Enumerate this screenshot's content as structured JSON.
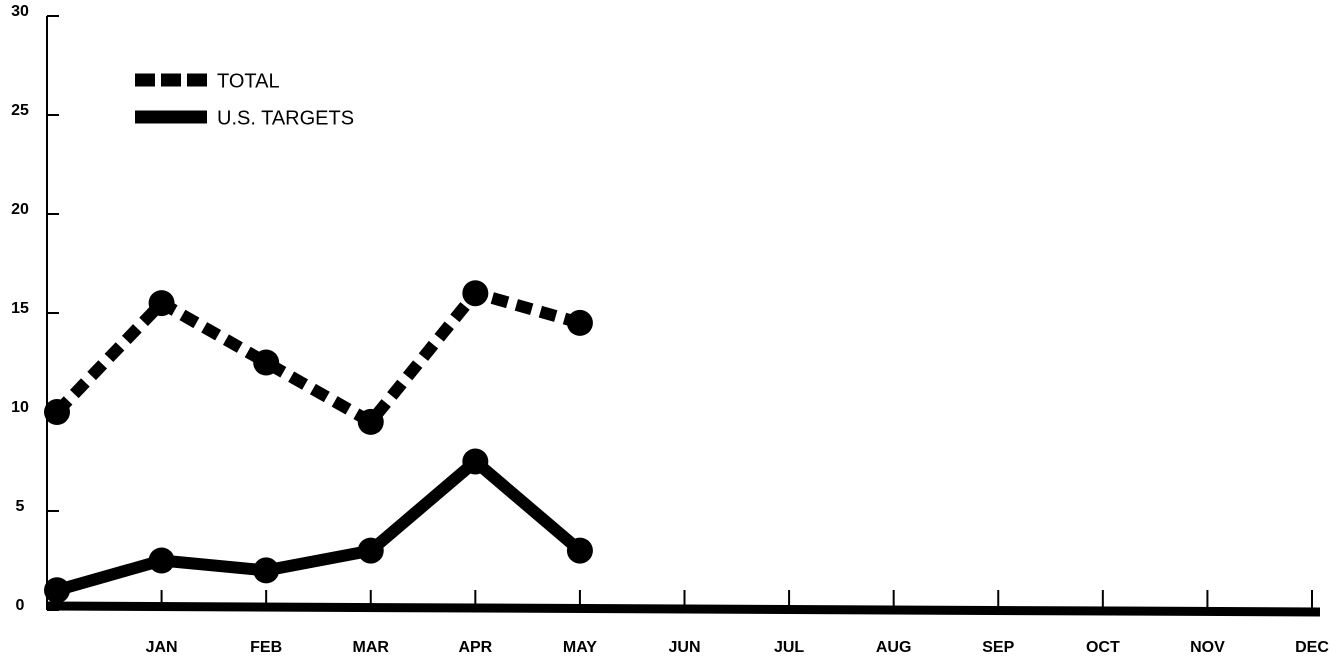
{
  "chart_data": {
    "type": "line",
    "categories": [
      null,
      "JAN",
      "FEB",
      "MAR",
      "APR",
      "MAY",
      "JUN",
      "JUL",
      "AUG",
      "SEP",
      "OCT",
      "NOV",
      "DEC"
    ],
    "series": [
      {
        "name": "TOTAL",
        "color": "#000000",
        "dash": true,
        "values": [
          10,
          15.5,
          12.5,
          9.5,
          16,
          14.5,
          null,
          null,
          null,
          null,
          null,
          null,
          null
        ]
      },
      {
        "name": "U.S. TARGETS",
        "color": "#000000",
        "dash": false,
        "values": [
          1,
          2.5,
          2,
          3,
          7.5,
          3,
          null,
          null,
          null,
          null,
          null,
          null,
          null
        ]
      }
    ],
    "ylim": [
      0,
      30
    ],
    "yticks": [
      0,
      5,
      10,
      15,
      20,
      25,
      30
    ],
    "grid": false,
    "legend": "top-left"
  }
}
